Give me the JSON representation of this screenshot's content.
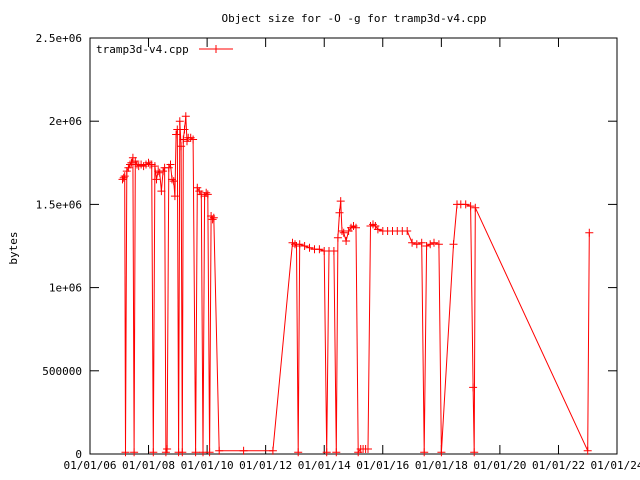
{
  "chart_data": {
    "type": "line",
    "title": "Object size for -O -g for tramp3d-v4.cpp",
    "xlabel": "",
    "ylabel": "bytes",
    "x_axis": {
      "scale": "date",
      "range": [
        "2006-01-01",
        "2024-01-01"
      ],
      "ticks": [
        "2006-01-01",
        "2008-01-01",
        "2010-01-01",
        "2012-01-01",
        "2014-01-01",
        "2016-01-01",
        "2018-01-01",
        "2020-01-01",
        "2022-01-01",
        "2024-01-01"
      ],
      "tick_labels": [
        "01/01/06",
        "01/01/08",
        "01/01/10",
        "01/01/12",
        "01/01/14",
        "01/01/16",
        "01/01/18",
        "01/01/20",
        "01/01/22",
        "01/01/24"
      ]
    },
    "y_axis": {
      "range": [
        0,
        2500000
      ],
      "ticks": [
        0,
        500000,
        1000000,
        1500000,
        2000000,
        2500000
      ],
      "tick_labels": [
        "0",
        "500000",
        "1e+06",
        "1.5e+06",
        "2e+06",
        "2.5e+06"
      ]
    },
    "grid": false,
    "legend_position": "top-left",
    "series": [
      {
        "name": "tramp3d-v4.cpp",
        "color": "#ff0000",
        "marker": "plus",
        "points": [
          [
            "2007-02-10",
            1650000
          ],
          [
            "2007-02-25",
            1660000
          ],
          [
            "2007-03-10",
            1670000
          ],
          [
            "2007-03-20",
            10000
          ],
          [
            "2007-04-05",
            1700000
          ],
          [
            "2007-04-25",
            1720000
          ],
          [
            "2007-05-15",
            1740000
          ],
          [
            "2007-06-01",
            1750000
          ],
          [
            "2007-06-20",
            1780000
          ],
          [
            "2007-07-05",
            10000
          ],
          [
            "2007-07-20",
            1760000
          ],
          [
            "2007-08-10",
            1740000
          ],
          [
            "2007-09-01",
            1730000
          ],
          [
            "2007-10-01",
            1740000
          ],
          [
            "2007-11-01",
            1730000
          ],
          [
            "2007-12-01",
            1740000
          ],
          [
            "2008-01-01",
            1750000
          ],
          [
            "2008-01-20",
            1740000
          ],
          [
            "2008-02-10",
            1740000
          ],
          [
            "2008-03-01",
            10000
          ],
          [
            "2008-03-20",
            1730000
          ],
          [
            "2008-04-10",
            1650000
          ],
          [
            "2008-05-01",
            1700000
          ],
          [
            "2008-05-20",
            1690000
          ],
          [
            "2008-06-10",
            1580000
          ],
          [
            "2008-07-01",
            1700000
          ],
          [
            "2008-07-20",
            1720000
          ],
          [
            "2008-08-05",
            10000
          ],
          [
            "2008-08-20",
            30000
          ],
          [
            "2008-09-10",
            1720000
          ],
          [
            "2008-10-01",
            1740000
          ],
          [
            "2008-10-20",
            1650000
          ],
          [
            "2008-11-10",
            1640000
          ],
          [
            "2008-11-25",
            1550000
          ],
          [
            "2008-12-10",
            1920000
          ],
          [
            "2008-12-25",
            1950000
          ],
          [
            "2009-01-10",
            10000
          ],
          [
            "2009-01-25",
            2000000
          ],
          [
            "2009-02-10",
            1850000
          ],
          [
            "2009-02-25",
            10000
          ],
          [
            "2009-03-10",
            1890000
          ],
          [
            "2009-03-25",
            1950000
          ],
          [
            "2009-04-10",
            2030000
          ],
          [
            "2009-04-25",
            1880000
          ],
          [
            "2009-05-10",
            1900000
          ],
          [
            "2009-06-10",
            1900000
          ],
          [
            "2009-07-10",
            1890000
          ],
          [
            "2009-08-10",
            10000
          ],
          [
            "2009-09-01",
            1600000
          ],
          [
            "2009-09-25",
            1580000
          ],
          [
            "2009-10-20",
            1560000
          ],
          [
            "2009-11-10",
            10000
          ],
          [
            "2009-12-01",
            1550000
          ],
          [
            "2009-12-20",
            1570000
          ],
          [
            "2010-01-10",
            1560000
          ],
          [
            "2010-02-01",
            10000
          ],
          [
            "2010-02-20",
            1430000
          ],
          [
            "2010-03-10",
            1410000
          ],
          [
            "2010-03-25",
            1420000
          ],
          [
            "2010-06-01",
            20000
          ],
          [
            "2011-04-01",
            20000
          ],
          [
            "2012-04-01",
            20000
          ],
          [
            "2012-12-01",
            1270000
          ],
          [
            "2013-01-01",
            1260000
          ],
          [
            "2013-01-20",
            1250000
          ],
          [
            "2013-02-10",
            10000
          ],
          [
            "2013-03-01",
            1260000
          ],
          [
            "2013-05-01",
            1250000
          ],
          [
            "2013-07-01",
            1240000
          ],
          [
            "2013-09-01",
            1230000
          ],
          [
            "2013-11-01",
            1230000
          ],
          [
            "2014-01-01",
            1220000
          ],
          [
            "2014-02-01",
            10000
          ],
          [
            "2014-03-01",
            1220000
          ],
          [
            "2014-05-01",
            1220000
          ],
          [
            "2014-06-01",
            10000
          ],
          [
            "2014-06-20",
            1300000
          ],
          [
            "2014-07-10",
            1450000
          ],
          [
            "2014-07-25",
            1520000
          ],
          [
            "2014-08-10",
            1340000
          ],
          [
            "2014-09-01",
            1330000
          ],
          [
            "2014-10-01",
            1280000
          ],
          [
            "2014-11-01",
            1340000
          ],
          [
            "2014-12-01",
            1360000
          ],
          [
            "2015-01-01",
            1370000
          ],
          [
            "2015-02-01",
            1360000
          ],
          [
            "2015-03-01",
            10000
          ],
          [
            "2015-04-01",
            30000
          ],
          [
            "2015-05-01",
            30000
          ],
          [
            "2015-06-01",
            30000
          ],
          [
            "2015-07-01",
            30000
          ],
          [
            "2015-08-01",
            1370000
          ],
          [
            "2015-09-01",
            1380000
          ],
          [
            "2015-10-01",
            1370000
          ],
          [
            "2015-11-01",
            1350000
          ],
          [
            "2016-01-01",
            1340000
          ],
          [
            "2016-03-01",
            1340000
          ],
          [
            "2016-05-01",
            1340000
          ],
          [
            "2016-07-01",
            1340000
          ],
          [
            "2016-09-01",
            1340000
          ],
          [
            "2016-11-01",
            1340000
          ],
          [
            "2017-01-01",
            1270000
          ],
          [
            "2017-03-01",
            1260000
          ],
          [
            "2017-05-01",
            1270000
          ],
          [
            "2017-06-01",
            10000
          ],
          [
            "2017-07-01",
            1250000
          ],
          [
            "2017-08-15",
            1260000
          ],
          [
            "2017-10-01",
            1270000
          ],
          [
            "2017-12-01",
            1260000
          ],
          [
            "2018-01-01",
            10000
          ],
          [
            "2018-06-01",
            1260000
          ],
          [
            "2018-07-15",
            1500000
          ],
          [
            "2018-09-01",
            1500000
          ],
          [
            "2018-11-01",
            1500000
          ],
          [
            "2019-01-01",
            1490000
          ],
          [
            "2019-02-01",
            400000
          ],
          [
            "2019-02-15",
            10000
          ],
          [
            "2019-03-01",
            1480000
          ],
          [
            "2023-01-01",
            20000
          ],
          [
            "2023-01-20",
            1330000
          ]
        ]
      }
    ]
  }
}
